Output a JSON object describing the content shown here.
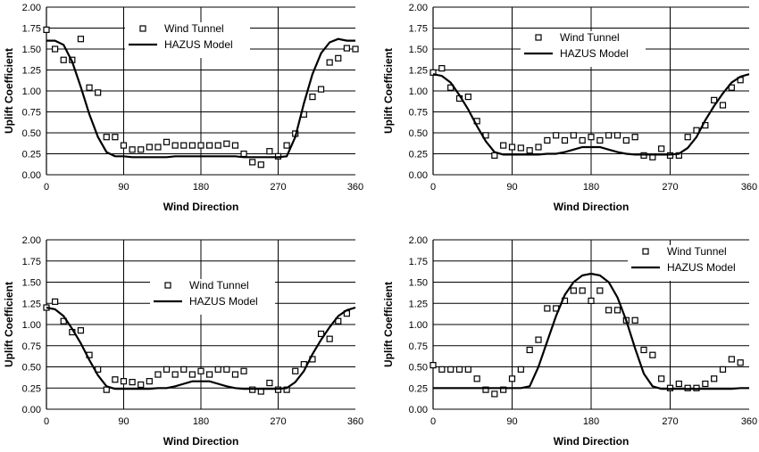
{
  "chart_data": [
    {
      "type": "scatter",
      "xlabel": "Wind Direction",
      "ylabel": "Uplift Coefficient",
      "xlim": [
        0,
        360
      ],
      "ylim": [
        0,
        2.0
      ],
      "xticks": [
        "0",
        "90",
        "180",
        "270",
        "360"
      ],
      "yticks": [
        "0.00",
        "0.25",
        "0.50",
        "0.75",
        "1.00",
        "1.25",
        "1.50",
        "1.75",
        "2.00"
      ],
      "grid": "horizontal",
      "legend_position": "top-center",
      "series": [
        {
          "name": "Wind Tunnel",
          "kind": "markers",
          "x": [
            0,
            10,
            20,
            30,
            40,
            50,
            60,
            70,
            80,
            90,
            100,
            110,
            120,
            130,
            140,
            150,
            160,
            170,
            180,
            190,
            200,
            210,
            220,
            230,
            240,
            250,
            260,
            270,
            280,
            290,
            300,
            310,
            320,
            330,
            340,
            350,
            360
          ],
          "y": [
            1.73,
            1.5,
            1.37,
            1.37,
            1.62,
            1.04,
            0.98,
            0.45,
            0.45,
            0.35,
            0.3,
            0.3,
            0.33,
            0.33,
            0.39,
            0.35,
            0.35,
            0.35,
            0.35,
            0.35,
            0.35,
            0.37,
            0.35,
            0.25,
            0.15,
            0.12,
            0.28,
            0.22,
            0.35,
            0.49,
            0.72,
            0.93,
            1.02,
            1.34,
            1.39,
            1.51,
            1.5
          ]
        },
        {
          "name": "HAZUS Model",
          "kind": "line",
          "x": [
            0,
            10,
            20,
            30,
            40,
            50,
            60,
            70,
            80,
            90,
            100,
            110,
            120,
            130,
            140,
            150,
            160,
            170,
            180,
            190,
            200,
            210,
            220,
            230,
            240,
            250,
            260,
            270,
            280,
            290,
            300,
            310,
            320,
            330,
            340,
            350,
            360
          ],
          "y": [
            1.6,
            1.6,
            1.55,
            1.35,
            1.05,
            0.72,
            0.45,
            0.27,
            0.22,
            0.22,
            0.21,
            0.21,
            0.21,
            0.21,
            0.21,
            0.22,
            0.22,
            0.22,
            0.22,
            0.22,
            0.22,
            0.22,
            0.22,
            0.21,
            0.21,
            0.21,
            0.21,
            0.21,
            0.22,
            0.45,
            0.85,
            1.2,
            1.45,
            1.58,
            1.62,
            1.6,
            1.6
          ]
        }
      ]
    },
    {
      "type": "scatter",
      "xlabel": "Wind Direction",
      "ylabel": "Uplift Coefficient",
      "xlim": [
        0,
        360
      ],
      "ylim": [
        0,
        2.0
      ],
      "xticks": [
        "0",
        "90",
        "180",
        "270",
        "360"
      ],
      "yticks": [
        "0.00",
        "0.25",
        "0.50",
        "0.75",
        "1.00",
        "1.25",
        "1.50",
        "1.75",
        "2.00"
      ],
      "grid": "horizontal",
      "legend_position": "top-center",
      "series": [
        {
          "name": "Wind Tunnel",
          "kind": "markers",
          "x": [
            0,
            10,
            20,
            30,
            40,
            50,
            60,
            70,
            80,
            90,
            100,
            110,
            120,
            130,
            140,
            150,
            160,
            170,
            180,
            190,
            200,
            210,
            220,
            230,
            240,
            250,
            260,
            270,
            280,
            290,
            300,
            310,
            320,
            330,
            340,
            350
          ],
          "y": [
            1.22,
            1.27,
            1.04,
            0.91,
            0.93,
            0.64,
            0.47,
            0.23,
            0.35,
            0.33,
            0.32,
            0.29,
            0.33,
            0.41,
            0.47,
            0.41,
            0.47,
            0.41,
            0.45,
            0.41,
            0.47,
            0.47,
            0.41,
            0.45,
            0.23,
            0.21,
            0.31,
            0.23,
            0.23,
            0.45,
            0.53,
            0.59,
            0.89,
            0.83,
            1.04,
            1.13
          ]
        },
        {
          "name": "HAZUS Model",
          "kind": "line",
          "x": [
            0,
            10,
            20,
            30,
            40,
            50,
            60,
            70,
            80,
            90,
            100,
            110,
            120,
            130,
            140,
            150,
            160,
            170,
            180,
            190,
            200,
            210,
            220,
            230,
            240,
            250,
            260,
            270,
            280,
            290,
            300,
            310,
            320,
            330,
            340,
            350,
            360
          ],
          "y": [
            1.2,
            1.18,
            1.1,
            0.95,
            0.78,
            0.58,
            0.4,
            0.27,
            0.24,
            0.24,
            0.24,
            0.24,
            0.24,
            0.25,
            0.25,
            0.27,
            0.3,
            0.33,
            0.33,
            0.33,
            0.3,
            0.27,
            0.25,
            0.24,
            0.24,
            0.24,
            0.24,
            0.24,
            0.25,
            0.32,
            0.45,
            0.65,
            0.82,
            0.97,
            1.1,
            1.17,
            1.2
          ]
        }
      ]
    },
    {
      "type": "scatter",
      "xlabel": "Wind Direction",
      "ylabel": "Uplift Coefficient",
      "xlim": [
        0,
        360
      ],
      "ylim": [
        0,
        2.0
      ],
      "xticks": [
        "0",
        "90",
        "180",
        "270",
        "360"
      ],
      "yticks": [
        "0.00",
        "0.25",
        "0.50",
        "0.75",
        "1.00",
        "1.25",
        "1.50",
        "1.75",
        "2.00"
      ],
      "grid": "horizontal",
      "legend_position": "top-center",
      "series": [
        {
          "name": "Wind Tunnel",
          "kind": "markers",
          "x": [
            0,
            10,
            20,
            30,
            40,
            50,
            60,
            70,
            80,
            90,
            100,
            110,
            120,
            130,
            140,
            150,
            160,
            170,
            180,
            190,
            200,
            210,
            220,
            230,
            240,
            250,
            260,
            270,
            280,
            290,
            300,
            310,
            320,
            330,
            340,
            350
          ],
          "y": [
            1.2,
            1.27,
            1.04,
            0.91,
            0.93,
            0.64,
            0.47,
            0.23,
            0.35,
            0.33,
            0.32,
            0.29,
            0.33,
            0.41,
            0.47,
            0.41,
            0.47,
            0.41,
            0.45,
            0.41,
            0.47,
            0.47,
            0.41,
            0.45,
            0.23,
            0.21,
            0.31,
            0.23,
            0.23,
            0.45,
            0.53,
            0.59,
            0.89,
            0.83,
            1.04,
            1.13
          ]
        },
        {
          "name": "HAZUS Model",
          "kind": "line",
          "x": [
            0,
            10,
            20,
            30,
            40,
            50,
            60,
            70,
            80,
            90,
            100,
            110,
            120,
            130,
            140,
            150,
            160,
            170,
            180,
            190,
            200,
            210,
            220,
            230,
            240,
            250,
            260,
            270,
            280,
            290,
            300,
            310,
            320,
            330,
            340,
            350,
            360
          ],
          "y": [
            1.2,
            1.18,
            1.1,
            0.95,
            0.78,
            0.58,
            0.4,
            0.27,
            0.24,
            0.24,
            0.24,
            0.24,
            0.24,
            0.25,
            0.25,
            0.27,
            0.3,
            0.33,
            0.33,
            0.33,
            0.3,
            0.27,
            0.25,
            0.24,
            0.24,
            0.24,
            0.24,
            0.24,
            0.25,
            0.32,
            0.45,
            0.65,
            0.82,
            0.97,
            1.1,
            1.17,
            1.2
          ]
        }
      ]
    },
    {
      "type": "scatter",
      "xlabel": "Wind Direction",
      "ylabel": "Uplift Coefficient",
      "xlim": [
        0,
        360
      ],
      "ylim": [
        0,
        2.0
      ],
      "xticks": [
        "0",
        "90",
        "180",
        "270",
        "360"
      ],
      "yticks": [
        "0.00",
        "0.25",
        "0.50",
        "0.75",
        "1.00",
        "1.25",
        "1.50",
        "1.75",
        "2.00"
      ],
      "grid": "horizontal",
      "legend_position": "top-right",
      "series": [
        {
          "name": "Wind Tunnel",
          "kind": "markers",
          "x": [
            0,
            10,
            20,
            30,
            40,
            50,
            60,
            70,
            80,
            90,
            100,
            110,
            120,
            130,
            140,
            150,
            160,
            170,
            180,
            190,
            200,
            210,
            220,
            230,
            240,
            250,
            260,
            270,
            280,
            290,
            300,
            310,
            320,
            330,
            340,
            350
          ],
          "y": [
            0.52,
            0.47,
            0.47,
            0.47,
            0.47,
            0.36,
            0.23,
            0.18,
            0.23,
            0.36,
            0.47,
            0.7,
            0.82,
            1.19,
            1.19,
            1.28,
            1.4,
            1.4,
            1.28,
            1.4,
            1.17,
            1.17,
            1.05,
            1.05,
            0.7,
            0.64,
            0.36,
            0.25,
            0.3,
            0.25,
            0.25,
            0.3,
            0.36,
            0.47,
            0.59,
            0.55
          ]
        },
        {
          "name": "HAZUS Model",
          "kind": "line",
          "x": [
            0,
            10,
            20,
            30,
            40,
            50,
            60,
            70,
            80,
            90,
            100,
            110,
            120,
            130,
            140,
            150,
            160,
            170,
            180,
            190,
            200,
            210,
            220,
            230,
            240,
            250,
            260,
            270,
            280,
            290,
            300,
            310,
            320,
            330,
            340,
            350,
            360
          ],
          "y": [
            0.25,
            0.25,
            0.25,
            0.25,
            0.25,
            0.25,
            0.25,
            0.25,
            0.25,
            0.25,
            0.25,
            0.27,
            0.5,
            0.8,
            1.1,
            1.35,
            1.5,
            1.58,
            1.6,
            1.58,
            1.5,
            1.32,
            1.05,
            0.72,
            0.42,
            0.27,
            0.24,
            0.24,
            0.24,
            0.24,
            0.24,
            0.24,
            0.24,
            0.24,
            0.24,
            0.25,
            0.25
          ]
        }
      ]
    }
  ]
}
